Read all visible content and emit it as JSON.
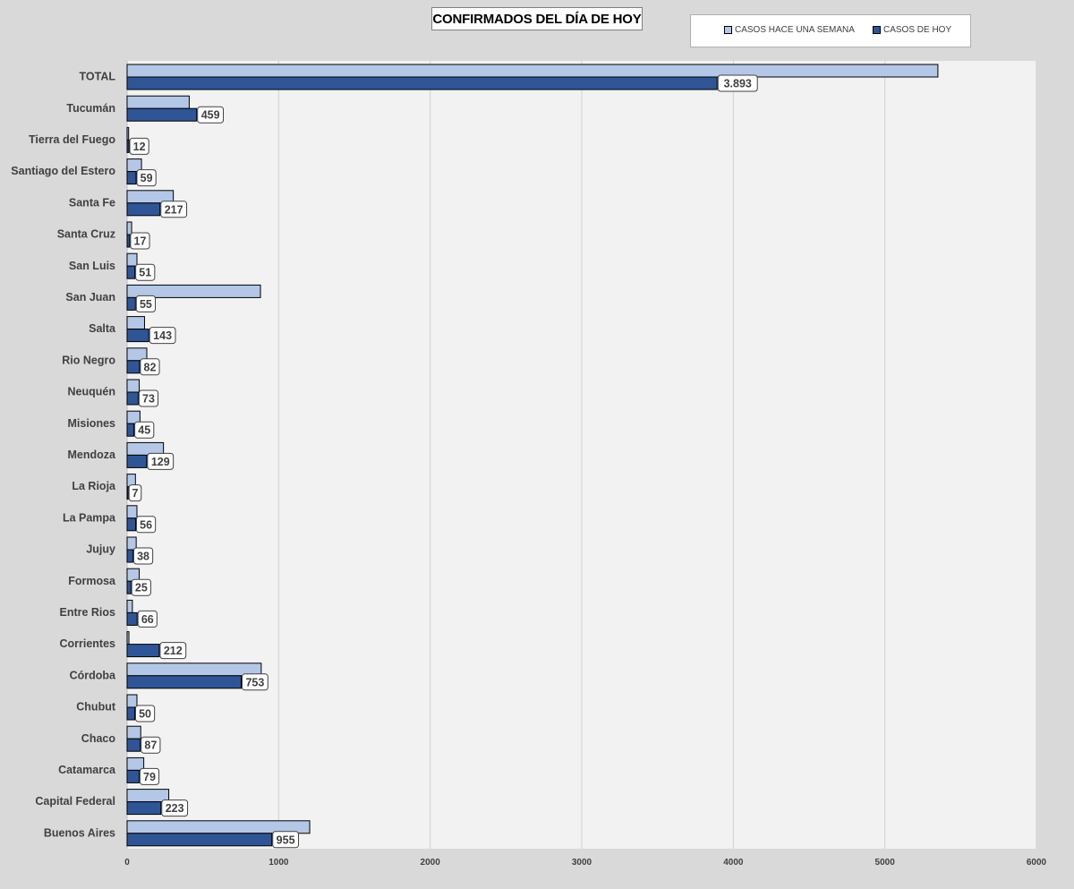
{
  "chart_data": {
    "type": "bar",
    "orientation": "horizontal",
    "title": "CONFIRMADOS DEL DÍA DE HOY",
    "legend_position": "top-right",
    "grid": true,
    "xlim": [
      0,
      6000
    ],
    "x_ticks": [
      0,
      1000,
      2000,
      3000,
      4000,
      5000,
      6000
    ],
    "categories": [
      "TOTAL",
      "Tucumán",
      "Tierra del Fuego",
      "Santiago del Estero",
      "Santa Fe",
      "Santa Cruz",
      "San Luis",
      "San Juan",
      "Salta",
      "Rio Negro",
      "Neuquén",
      "Misiones",
      "Mendoza",
      "La Rioja",
      "La Pampa",
      "Jujuy",
      "Formosa",
      "Entre Rios",
      "Corrientes",
      "Córdoba",
      "Chubut",
      "Chaco",
      "Catamarca",
      "Capital Federal",
      "Buenos Aires"
    ],
    "series": [
      {
        "name": "CASOS HACE UNA SEMANA",
        "color": "#b4c7e7",
        "values": [
          5350,
          410,
          10,
          95,
          305,
          30,
          65,
          880,
          115,
          130,
          80,
          85,
          240,
          55,
          65,
          60,
          80,
          35,
          12,
          885,
          65,
          90,
          110,
          275,
          1205
        ]
      },
      {
        "name": "CASOS DE HOY",
        "color": "#2f5597",
        "values": [
          3893,
          459,
          12,
          59,
          217,
          17,
          51,
          55,
          143,
          82,
          73,
          45,
          129,
          7,
          56,
          38,
          25,
          66,
          212,
          753,
          50,
          87,
          79,
          223,
          955
        ]
      }
    ],
    "data_labels": [
      "3.893",
      "459",
      "12",
      "59",
      "217",
      "17",
      "51",
      "55",
      "143",
      "82",
      "73",
      "45",
      "129",
      "7",
      "56",
      "38",
      "25",
      "66",
      "212",
      "753",
      "50",
      "87",
      "79",
      "223",
      "955"
    ]
  }
}
